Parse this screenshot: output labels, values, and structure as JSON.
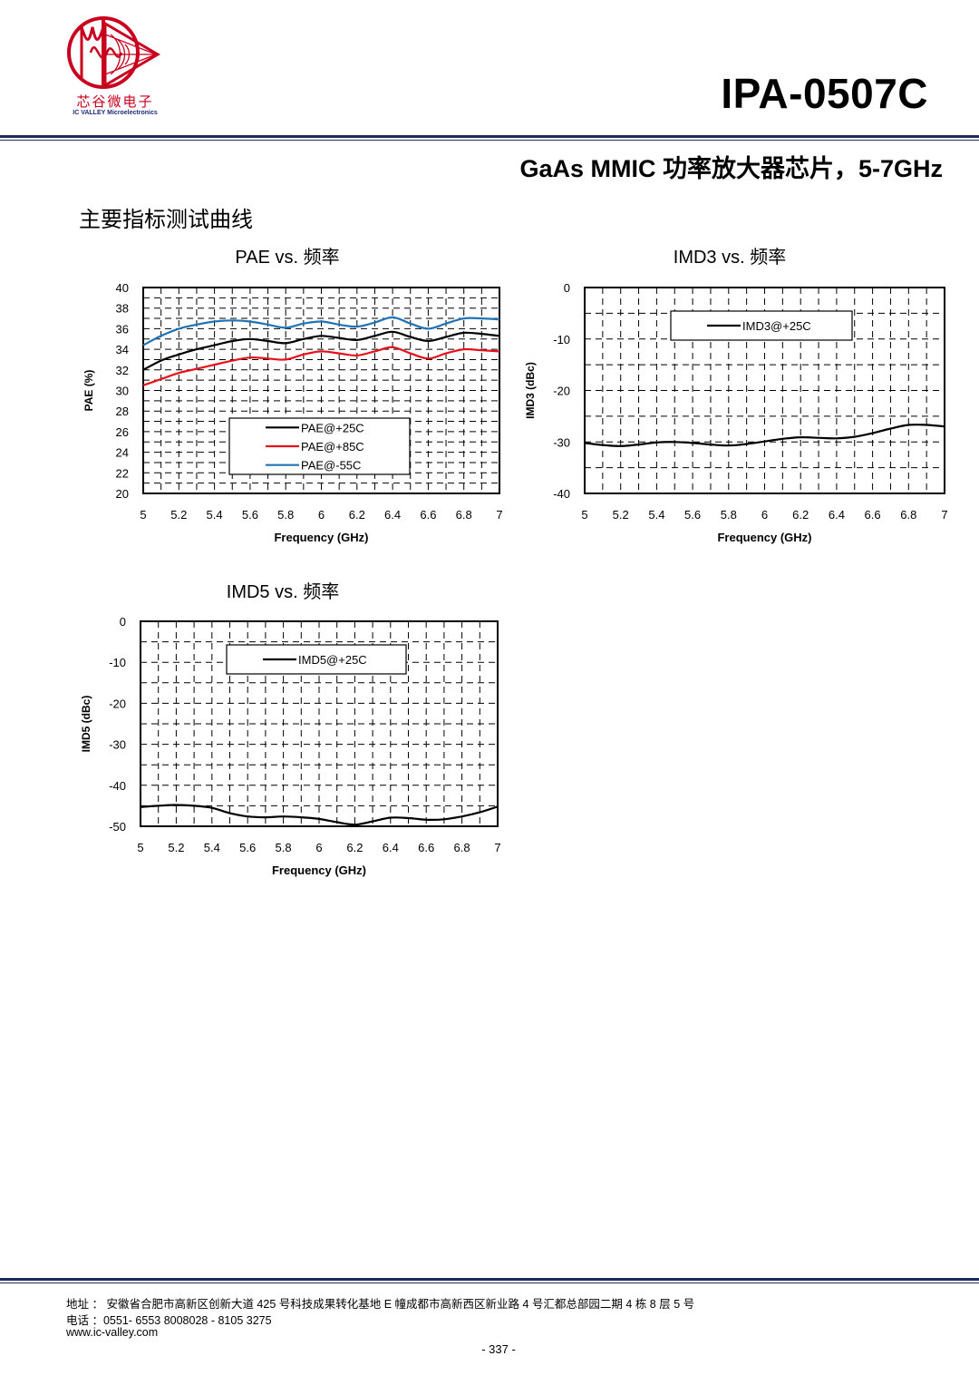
{
  "header": {
    "brand_cn": "芯谷微电子",
    "brand_en": "IC VALLEY Microelectronics",
    "part_number": "IPA-0507C",
    "subtitle": "GaAs MMIC 功率放大器芯片，5-7GHz"
  },
  "section_title": "主要指标测试曲线",
  "colors": {
    "brand_red": "#c8001e",
    "rule_navy": "#1f2a5a"
  },
  "chart_data": [
    {
      "id": "pae",
      "type": "line",
      "title": "PAE vs. 频率",
      "xlabel": "Frequency (GHz)",
      "ylabel": "PAE (%)",
      "xlim": [
        5,
        7
      ],
      "ylim": [
        20,
        40
      ],
      "xticks": [
        "5",
        "5.2",
        "5.4",
        "5.6",
        "5.8",
        "6",
        "6.2",
        "6.4",
        "6.6",
        "6.8",
        "7"
      ],
      "yticks": [
        "20",
        "22",
        "24",
        "26",
        "28",
        "30",
        "32",
        "34",
        "36",
        "38",
        "40"
      ],
      "grid": true,
      "legend": "lower-middle",
      "x": [
        5,
        5.1,
        5.2,
        5.3,
        5.4,
        5.5,
        5.6,
        5.7,
        5.8,
        5.9,
        6,
        6.1,
        6.2,
        6.3,
        6.4,
        6.5,
        6.6,
        6.7,
        6.8,
        6.9,
        7
      ],
      "series": [
        {
          "name": "PAE@+25C",
          "color": "#000000",
          "values": [
            32.0,
            32.9,
            33.5,
            34.0,
            34.4,
            34.8,
            35.0,
            34.8,
            34.6,
            35.0,
            35.3,
            35.1,
            34.9,
            35.3,
            35.7,
            35.2,
            34.8,
            35.2,
            35.6,
            35.5,
            35.3
          ]
        },
        {
          "name": "PAE@+85C",
          "color": "#e8101a",
          "values": [
            30.5,
            31.1,
            31.7,
            32.1,
            32.5,
            32.9,
            33.2,
            33.1,
            33.0,
            33.5,
            33.8,
            33.6,
            33.4,
            33.8,
            34.2,
            33.6,
            33.1,
            33.6,
            34.0,
            33.9,
            33.8
          ]
        },
        {
          "name": "PAE@-55C",
          "color": "#1f73b7",
          "values": [
            34.4,
            35.3,
            36.0,
            36.4,
            36.7,
            36.8,
            36.7,
            36.4,
            36.1,
            36.5,
            36.7,
            36.4,
            36.2,
            36.6,
            37.1,
            36.5,
            36.0,
            36.5,
            37.0,
            37.0,
            36.9
          ]
        }
      ]
    },
    {
      "id": "imd3",
      "type": "line",
      "title": "IMD3 vs. 频率",
      "xlabel": "Frequency (GHz)",
      "ylabel": "IMD3 (dBc)",
      "xlim": [
        5,
        7
      ],
      "ylim": [
        -40,
        0
      ],
      "xticks": [
        "5",
        "5.2",
        "5.4",
        "5.6",
        "5.8",
        "6",
        "6.2",
        "6.4",
        "6.6",
        "6.8",
        "7"
      ],
      "yticks": [
        "-40",
        "-30",
        "-20",
        "-10",
        "0"
      ],
      "grid": true,
      "legend": "top-middle",
      "x": [
        5,
        5.1,
        5.2,
        5.3,
        5.4,
        5.5,
        5.6,
        5.7,
        5.8,
        5.9,
        6,
        6.1,
        6.2,
        6.3,
        6.4,
        6.5,
        6.6,
        6.7,
        6.8,
        6.9,
        7
      ],
      "series": [
        {
          "name": "IMD3@+25C",
          "color": "#000000",
          "values": [
            -30.2,
            -30.6,
            -30.8,
            -30.5,
            -30.1,
            -30.0,
            -30.2,
            -30.5,
            -30.7,
            -30.4,
            -29.9,
            -29.4,
            -29.1,
            -29.2,
            -29.3,
            -29.0,
            -28.3,
            -27.4,
            -26.7,
            -26.7,
            -27.0
          ]
        }
      ]
    },
    {
      "id": "imd5",
      "type": "line",
      "title": "IMD5 vs. 频率",
      "xlabel": "Frequency (GHz)",
      "ylabel": "IMD5 (dBc)",
      "xlim": [
        5,
        7
      ],
      "ylim": [
        -50,
        0
      ],
      "xticks": [
        "5",
        "5.2",
        "5.4",
        "5.6",
        "5.8",
        "6",
        "6.2",
        "6.4",
        "6.6",
        "6.8",
        "7"
      ],
      "yticks": [
        "-50",
        "-40",
        "-30",
        "-20",
        "-10",
        "0"
      ],
      "grid": true,
      "legend": "top-middle",
      "x": [
        5,
        5.1,
        5.2,
        5.3,
        5.4,
        5.5,
        5.6,
        5.7,
        5.8,
        5.9,
        6,
        6.1,
        6.2,
        6.3,
        6.4,
        6.5,
        6.6,
        6.7,
        6.8,
        6.9,
        7
      ],
      "series": [
        {
          "name": "IMD5@+25C",
          "color": "#000000",
          "values": [
            -45.3,
            -45.0,
            -44.8,
            -45.0,
            -45.5,
            -46.8,
            -47.6,
            -47.8,
            -47.6,
            -47.8,
            -48.2,
            -49.0,
            -49.6,
            -48.8,
            -47.9,
            -48.0,
            -48.4,
            -48.3,
            -47.6,
            -46.6,
            -45.2
          ]
        }
      ]
    }
  ],
  "footer": {
    "address": "地址 ：  安徽省合肥市高新区创新大道 425 号科技成果转化基地 E 幢成都市高新西区新业路 4 号汇都总部园二期 4 栋 8 层 5 号",
    "phone": "电话 ：0551- 6553 8008028 - 8105 3275",
    "website": "www.ic-valley.com",
    "page_number": "- 337 -"
  }
}
